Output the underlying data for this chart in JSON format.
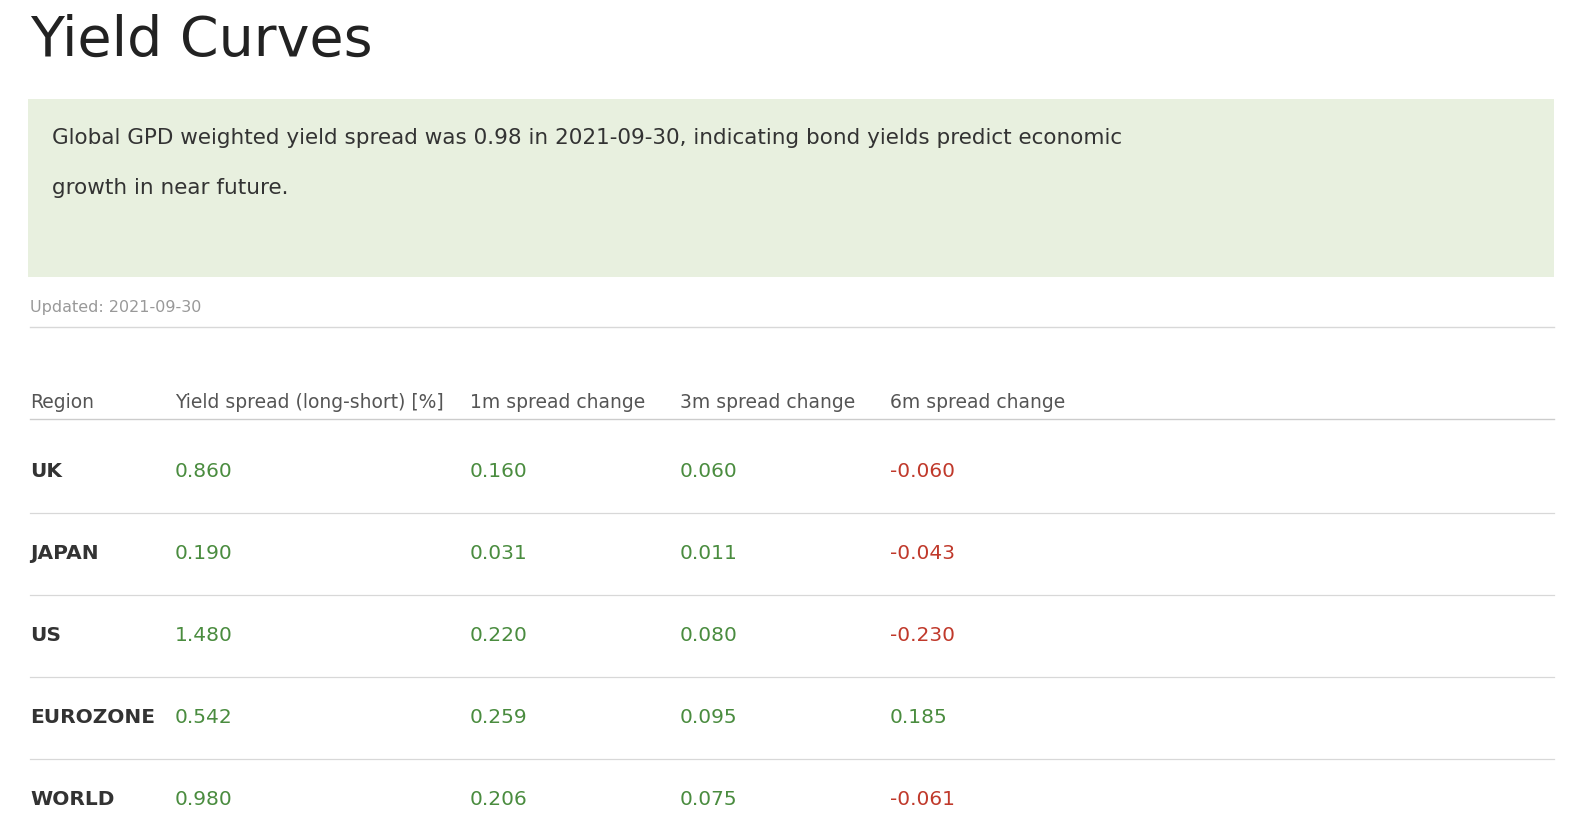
{
  "title": "Yield Curves",
  "info_box_text_line1": "Global GPD weighted yield spread was 0.98 in 2021-09-30, indicating bond yields predict economic",
  "info_box_text_line2": "growth in near future.",
  "updated_text": "Updated: 2021-09-30",
  "col_headers": [
    "Region",
    "Yield spread (long-short) [%]",
    "1m spread change",
    "3m spread change",
    "6m spread change"
  ],
  "rows": [
    [
      "UK",
      "0.860",
      "0.160",
      "0.060",
      "-0.060"
    ],
    [
      "JAPAN",
      "0.190",
      "0.031",
      "0.011",
      "-0.043"
    ],
    [
      "US",
      "1.480",
      "0.220",
      "0.080",
      "-0.230"
    ],
    [
      "EUROZONE",
      "0.542",
      "0.259",
      "0.095",
      "0.185"
    ],
    [
      "WORLD",
      "0.980",
      "0.206",
      "0.075",
      "-0.061"
    ]
  ],
  "background_color": "#ffffff",
  "info_box_bg": "#e8f0df",
  "info_box_border": "#c8dab0",
  "title_color": "#222222",
  "header_color": "#555555",
  "region_color": "#333333",
  "green_color": "#4a8c3f",
  "red_color": "#c0392b",
  "updated_color": "#999999",
  "row_line_color": "#d8d8d8",
  "header_line_color": "#cccccc",
  "fig_width": 15.82,
  "fig_height": 8.28,
  "dpi": 100
}
